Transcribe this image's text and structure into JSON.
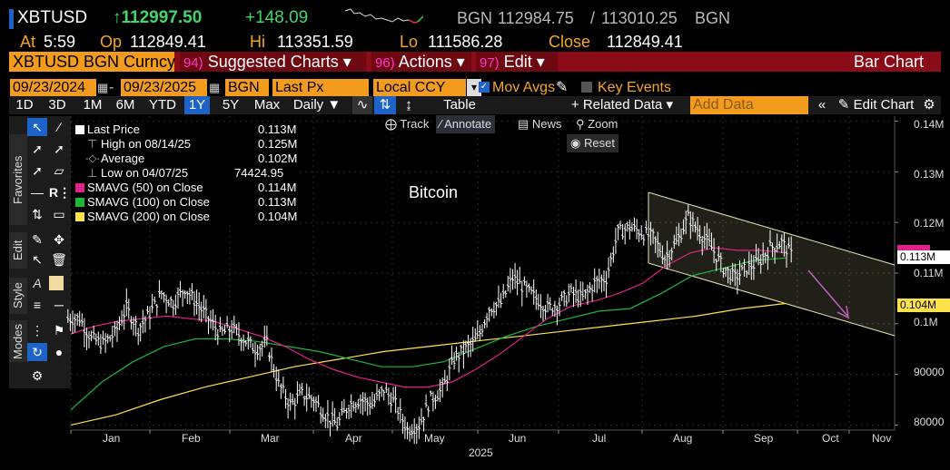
{
  "header": {
    "ticker": "XBTUSD",
    "last_price": "↑112997.50",
    "change": "+148.09",
    "source1": "BGN",
    "bid": "112984.75",
    "ask": "113010.25",
    "source2": "BGN",
    "at_label": "At",
    "time": "5:59",
    "op_label": "Op",
    "open": "112849.41",
    "hi_label": "Hi",
    "high": "113351.59",
    "lo_label": "Lo",
    "low": "111586.28",
    "close_label": "Close",
    "close": "112849.41"
  },
  "menubar": {
    "security": "XBTUSD BGN Curncy",
    "suggested_num": "94)",
    "suggested": "Suggested Charts ▾",
    "actions_num": "96)",
    "actions": "Actions ▾",
    "edit_num": "97)",
    "edit": "Edit ▾",
    "chart_type": "Bar Chart"
  },
  "params": {
    "start_date": "09/23/2024",
    "end_date": "09/23/2025",
    "source": "BGN",
    "field": "Last Px",
    "currency": "Local CCY",
    "mov_avgs": "Mov Avgs",
    "key_events": "Key Events",
    "add_data_placeholder": "Add Data"
  },
  "toolbar": {
    "periods": [
      "1D",
      "3D",
      "1M",
      "6M",
      "YTD",
      "1Y",
      "5Y",
      "Max"
    ],
    "selected_period": "1Y",
    "frequency": "Daily ▼",
    "table": "Table",
    "related_data": "+ Related Data ▾",
    "edit_chart": "Edit Chart"
  },
  "sidebar": {
    "tabs": [
      "Favorites",
      "Edit",
      "Style",
      "Modes"
    ]
  },
  "chart_tools": {
    "track": "Track",
    "annotate": "Annotate",
    "news": "News",
    "zoom": "Zoom",
    "reset": "Reset"
  },
  "legend": [
    {
      "name": "Last Price",
      "value": "0.113M",
      "color": "#ffffff"
    },
    {
      "name": "High on 08/14/25",
      "value": "0.125M",
      "color": ""
    },
    {
      "name": "Average",
      "value": "0.102M",
      "color": ""
    },
    {
      "name": "Low on 04/07/25",
      "value": "74424.95",
      "color": ""
    },
    {
      "name": "SMAVG (50)  on Close",
      "value": "0.114M",
      "color": "#e0218a"
    },
    {
      "name": "SMAVG (100)  on Close",
      "value": "0.113M",
      "color": "#1fb63c"
    },
    {
      "name": "SMAVG (200)  on Close",
      "value": "0.104M",
      "color": "#ffe24a"
    }
  ],
  "chart_data": {
    "type": "bar",
    "annotation": "Bitcoin",
    "x_tick_labels": [
      "Jan",
      "Feb",
      "Mar",
      "Apr",
      "May",
      "Jun",
      "Jul",
      "Aug",
      "Sep",
      "Oct",
      "Nov"
    ],
    "x_year_label": "2025",
    "y_tick_labels": [
      "80000",
      "90000",
      "0.1M",
      "0.11M",
      "0.12M",
      "0.13M",
      "0.14M"
    ],
    "ylim": [
      79000,
      141000
    ],
    "y_badges": [
      {
        "label": "0.113M",
        "value": 113000,
        "bg": "#ffffff",
        "fg": "#000000"
      },
      {
        "label": "0.104M",
        "value": 104000,
        "bg": "#ffe24a",
        "fg": "#000000"
      }
    ],
    "price_close_weekly": [
      101000,
      97000,
      96000,
      98000,
      103000,
      99000,
      102000,
      106000,
      104000,
      107000,
      104000,
      101000,
      98000,
      99000,
      97000,
      95000,
      96000,
      88000,
      84000,
      86000,
      85000,
      82000,
      80000,
      84000,
      85000,
      84000,
      87000,
      84000,
      79000,
      80000,
      85000,
      87000,
      93000,
      95000,
      97000,
      103000,
      104000,
      109000,
      107000,
      105000,
      103000,
      104000,
      106000,
      105000,
      108000,
      109000,
      118000,
      119000,
      118000,
      117000,
      113000,
      116000,
      121000,
      118000,
      115000,
      111000,
      109000,
      111000,
      112000,
      115000,
      116000,
      113000
    ],
    "sma50": [
      98000,
      99500,
      100500,
      101000,
      101500,
      101000,
      100500,
      99000,
      97500,
      95500,
      93000,
      91000,
      89500,
      88500,
      87500,
      87500,
      88500,
      91000,
      94000,
      97500,
      101000,
      103500,
      104500,
      106000,
      108000,
      111500,
      114000,
      115000,
      114500,
      114500,
      114000
    ],
    "sma100": [
      83000,
      88500,
      92500,
      95500,
      97000,
      97000,
      96500,
      95500,
      94500,
      93000,
      91500,
      91500,
      92500,
      95000,
      97500,
      99500,
      101000,
      102500,
      103000,
      106000,
      109500,
      111000,
      112500,
      113000
    ],
    "sma200": [
      80000,
      82000,
      85000,
      87500,
      89500,
      91500,
      93000,
      94500,
      95500,
      96500,
      97500,
      98500,
      99500,
      100500,
      101500,
      103000,
      104000
    ]
  }
}
